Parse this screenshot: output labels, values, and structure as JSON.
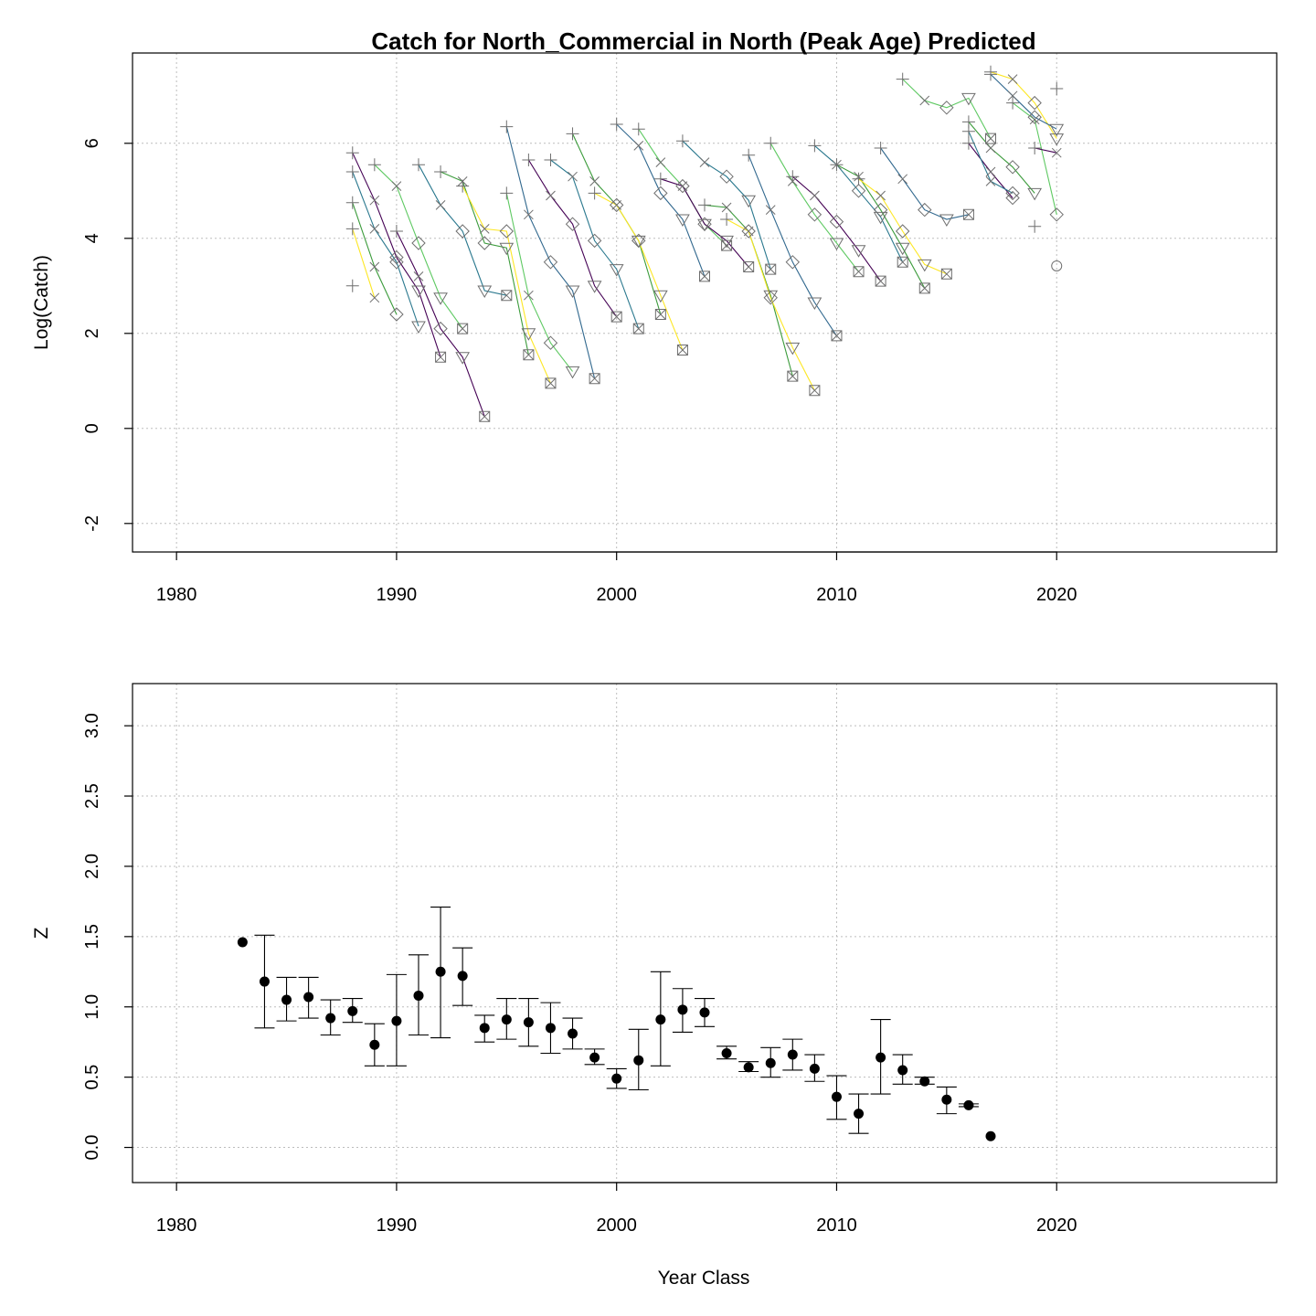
{
  "chart_data": [
    {
      "type": "line",
      "title": "Catch for North_Commercial in North (Peak Age) Predicted",
      "xlabel": "",
      "ylabel": "Log(Catch)",
      "xlim": [
        1978,
        2030
      ],
      "ylim": [
        -2.6,
        7.9
      ],
      "xticks": [
        1980,
        1990,
        2000,
        2010,
        2020
      ],
      "yticks": [
        -2,
        0,
        2,
        4,
        6
      ],
      "grid": true,
      "marker_order": [
        "plus",
        "x",
        "diamond",
        "triangle-down",
        "box-x"
      ],
      "cohort_colors": [
        "#440154",
        "#2a788e",
        "#3b9b3b",
        "#fde725",
        "#31688e",
        "#5ec962"
      ],
      "cohorts": [
        {
          "x": [
            1988,
            1989,
            1990,
            1991,
            1992
          ],
          "y": [
            5.8,
            4.8,
            3.6,
            2.9,
            1.5
          ]
        },
        {
          "x": [
            1988,
            1989,
            1990,
            1991
          ],
          "y": [
            5.4,
            4.2,
            3.5,
            2.15
          ]
        },
        {
          "x": [
            1988,
            1989,
            1990
          ],
          "y": [
            4.75,
            3.4,
            2.4
          ]
        },
        {
          "x": [
            1988,
            1989
          ],
          "y": [
            4.2,
            2.75
          ]
        },
        {
          "x": [
            1988
          ],
          "y": [
            3.0
          ]
        },
        {
          "x": [
            1989,
            1990,
            1991,
            1992,
            1993
          ],
          "y": [
            5.55,
            5.1,
            3.9,
            2.75,
            2.1
          ]
        },
        {
          "x": [
            1990,
            1991,
            1992,
            1993,
            1994
          ],
          "y": [
            4.15,
            3.2,
            2.1,
            1.5,
            0.25
          ]
        },
        {
          "x": [
            1991,
            1992,
            1993,
            1994,
            1995
          ],
          "y": [
            5.55,
            4.7,
            4.15,
            2.9,
            2.8
          ]
        },
        {
          "x": [
            1992,
            1993,
            1994,
            1995,
            1996
          ],
          "y": [
            5.4,
            5.2,
            3.9,
            3.8,
            1.55
          ]
        },
        {
          "x": [
            1993,
            1994,
            1995,
            1996,
            1997
          ],
          "y": [
            5.1,
            4.2,
            4.15,
            2.0,
            0.95
          ]
        },
        {
          "x": [
            1995,
            1996,
            1997,
            1998,
            1999
          ],
          "y": [
            6.35,
            4.5,
            3.5,
            2.9,
            1.05
          ]
        },
        {
          "x": [
            1995,
            1996,
            1997,
            1998
          ],
          "y": [
            4.95,
            2.8,
            1.8,
            1.2
          ]
        },
        {
          "x": [
            1996,
            1997,
            1998,
            1999,
            2000
          ],
          "y": [
            5.65,
            4.9,
            4.3,
            3.0,
            2.35
          ]
        },
        {
          "x": [
            1997,
            1998,
            1999,
            2000,
            2001
          ],
          "y": [
            5.65,
            5.3,
            3.95,
            3.35,
            2.1
          ]
        },
        {
          "x": [
            1998,
            1999,
            2000,
            2001,
            2002
          ],
          "y": [
            6.2,
            5.2,
            4.7,
            3.95,
            2.4
          ]
        },
        {
          "x": [
            1999,
            2000,
            2001,
            2002,
            2003
          ],
          "y": [
            4.95,
            4.7,
            3.95,
            2.8,
            1.65
          ]
        },
        {
          "x": [
            2000,
            2001,
            2002,
            2003,
            2004
          ],
          "y": [
            6.4,
            5.95,
            4.95,
            4.4,
            3.2
          ]
        },
        {
          "x": [
            2001,
            2002,
            2003,
            2004,
            2005
          ],
          "y": [
            6.3,
            5.6,
            5.1,
            4.3,
            3.85
          ]
        },
        {
          "x": [
            2002,
            2003,
            2004,
            2005,
            2006
          ],
          "y": [
            5.25,
            5.1,
            4.3,
            3.95,
            3.4
          ]
        },
        {
          "x": [
            2003,
            2004,
            2005,
            2006,
            2007
          ],
          "y": [
            6.05,
            5.6,
            5.3,
            4.8,
            3.35
          ]
        },
        {
          "x": [
            2004,
            2005,
            2006,
            2007,
            2008
          ],
          "y": [
            4.7,
            4.65,
            4.15,
            2.8,
            1.1
          ]
        },
        {
          "x": [
            2005,
            2006,
            2007,
            2008,
            2009
          ],
          "y": [
            4.4,
            4.15,
            2.75,
            1.7,
            0.8
          ]
        },
        {
          "x": [
            2006,
            2007,
            2008,
            2009,
            2010
          ],
          "y": [
            5.75,
            4.6,
            3.5,
            2.65,
            1.95
          ]
        },
        {
          "x": [
            2007,
            2008,
            2009,
            2010,
            2011
          ],
          "y": [
            6.0,
            5.2,
            4.5,
            3.9,
            3.3
          ]
        },
        {
          "x": [
            2008,
            2009,
            2010,
            2011,
            2012
          ],
          "y": [
            5.3,
            4.9,
            4.35,
            3.75,
            3.1
          ]
        },
        {
          "x": [
            2009,
            2010,
            2011,
            2012,
            2013
          ],
          "y": [
            5.95,
            5.55,
            5.0,
            4.45,
            3.5
          ]
        },
        {
          "x": [
            2010,
            2011,
            2012,
            2013,
            2014
          ],
          "y": [
            5.55,
            5.3,
            4.6,
            3.8,
            2.95
          ]
        },
        {
          "x": [
            2011,
            2012,
            2013,
            2014,
            2015
          ],
          "y": [
            5.25,
            4.9,
            4.15,
            3.45,
            3.25
          ]
        },
        {
          "x": [
            2012,
            2013,
            2014,
            2015,
            2016
          ],
          "y": [
            5.9,
            5.25,
            4.6,
            4.4,
            4.5
          ]
        },
        {
          "x": [
            2013,
            2014,
            2015,
            2016,
            2017
          ],
          "y": [
            7.35,
            6.9,
            6.75,
            6.95,
            6.1
          ]
        },
        {
          "x": [
            2016,
            2017,
            2018
          ],
          "y": [
            6.0,
            5.4,
            4.85
          ]
        },
        {
          "x": [
            2016,
            2017,
            2018
          ],
          "y": [
            6.25,
            5.2,
            4.95
          ]
        },
        {
          "x": [
            2016,
            2017,
            2018,
            2019
          ],
          "y": [
            6.45,
            5.9,
            5.5,
            4.95
          ]
        },
        {
          "x": [
            2017,
            2018,
            2019,
            2020
          ],
          "y": [
            7.5,
            7.35,
            6.85,
            6.1
          ]
        },
        {
          "x": [
            2017,
            2018,
            2019,
            2020
          ],
          "y": [
            7.45,
            7.0,
            6.55,
            6.3
          ]
        },
        {
          "x": [
            2018,
            2019,
            2020
          ],
          "y": [
            6.85,
            6.5,
            4.5
          ]
        },
        {
          "x": [
            2019,
            2020
          ],
          "y": [
            5.9,
            5.8
          ]
        },
        {
          "x": [
            2019
          ],
          "y": [
            4.25
          ]
        },
        {
          "x": [
            2020
          ],
          "y": [
            7.15
          ]
        },
        {
          "x": [
            2020
          ],
          "y": [
            3.42
          ],
          "marker": "circle"
        }
      ]
    },
    {
      "type": "scatter",
      "title": "",
      "xlabel": "Year Class",
      "ylabel": "Z",
      "xlim": [
        1978,
        2030
      ],
      "ylim": [
        -0.25,
        3.3
      ],
      "xticks": [
        1980,
        1990,
        2000,
        2010,
        2020
      ],
      "yticks": [
        "0.0",
        "0.5",
        "1.0",
        "1.5",
        "2.0",
        "2.5",
        "3.0"
      ],
      "grid": true,
      "points": [
        {
          "x": 1983,
          "y": 1.46,
          "lo": null,
          "hi": null
        },
        {
          "x": 1984,
          "y": 1.18,
          "lo": 0.85,
          "hi": 1.51
        },
        {
          "x": 1985,
          "y": 1.05,
          "lo": 0.9,
          "hi": 1.21
        },
        {
          "x": 1986,
          "y": 1.07,
          "lo": 0.92,
          "hi": 1.21
        },
        {
          "x": 1987,
          "y": 0.92,
          "lo": 0.8,
          "hi": 1.05
        },
        {
          "x": 1988,
          "y": 0.97,
          "lo": 0.89,
          "hi": 1.06
        },
        {
          "x": 1989,
          "y": 0.73,
          "lo": 0.58,
          "hi": 0.88
        },
        {
          "x": 1990,
          "y": 0.9,
          "lo": 0.58,
          "hi": 1.23
        },
        {
          "x": 1991,
          "y": 1.08,
          "lo": 0.8,
          "hi": 1.37
        },
        {
          "x": 1992,
          "y": 1.25,
          "lo": 0.78,
          "hi": 1.71
        },
        {
          "x": 1993,
          "y": 1.22,
          "lo": 1.01,
          "hi": 1.42
        },
        {
          "x": 1994,
          "y": 0.85,
          "lo": 0.75,
          "hi": 0.94
        },
        {
          "x": 1995,
          "y": 0.91,
          "lo": 0.77,
          "hi": 1.06
        },
        {
          "x": 1996,
          "y": 0.89,
          "lo": 0.72,
          "hi": 1.06
        },
        {
          "x": 1997,
          "y": 0.85,
          "lo": 0.67,
          "hi": 1.03
        },
        {
          "x": 1998,
          "y": 0.81,
          "lo": 0.7,
          "hi": 0.92
        },
        {
          "x": 1999,
          "y": 0.64,
          "lo": 0.59,
          "hi": 0.7
        },
        {
          "x": 2000,
          "y": 0.49,
          "lo": 0.42,
          "hi": 0.56
        },
        {
          "x": 2001,
          "y": 0.62,
          "lo": 0.41,
          "hi": 0.84
        },
        {
          "x": 2002,
          "y": 0.91,
          "lo": 0.58,
          "hi": 1.25
        },
        {
          "x": 2003,
          "y": 0.98,
          "lo": 0.82,
          "hi": 1.13
        },
        {
          "x": 2004,
          "y": 0.96,
          "lo": 0.86,
          "hi": 1.06
        },
        {
          "x": 2005,
          "y": 0.67,
          "lo": 0.63,
          "hi": 0.72
        },
        {
          "x": 2006,
          "y": 0.57,
          "lo": 0.54,
          "hi": 0.61
        },
        {
          "x": 2007,
          "y": 0.6,
          "lo": 0.5,
          "hi": 0.71
        },
        {
          "x": 2008,
          "y": 0.66,
          "lo": 0.55,
          "hi": 0.77
        },
        {
          "x": 2009,
          "y": 0.56,
          "lo": 0.47,
          "hi": 0.66
        },
        {
          "x": 2010,
          "y": 0.36,
          "lo": 0.2,
          "hi": 0.51
        },
        {
          "x": 2011,
          "y": 0.24,
          "lo": 0.1,
          "hi": 0.38
        },
        {
          "x": 2012,
          "y": 0.64,
          "lo": 0.38,
          "hi": 0.91
        },
        {
          "x": 2013,
          "y": 0.55,
          "lo": 0.45,
          "hi": 0.66
        },
        {
          "x": 2014,
          "y": 0.47,
          "lo": 0.45,
          "hi": 0.5
        },
        {
          "x": 2015,
          "y": 0.34,
          "lo": 0.24,
          "hi": 0.43
        },
        {
          "x": 2016,
          "y": 0.3,
          "lo": 0.29,
          "hi": 0.31
        },
        {
          "x": 2017,
          "y": 0.08,
          "lo": null,
          "hi": null
        }
      ]
    }
  ]
}
